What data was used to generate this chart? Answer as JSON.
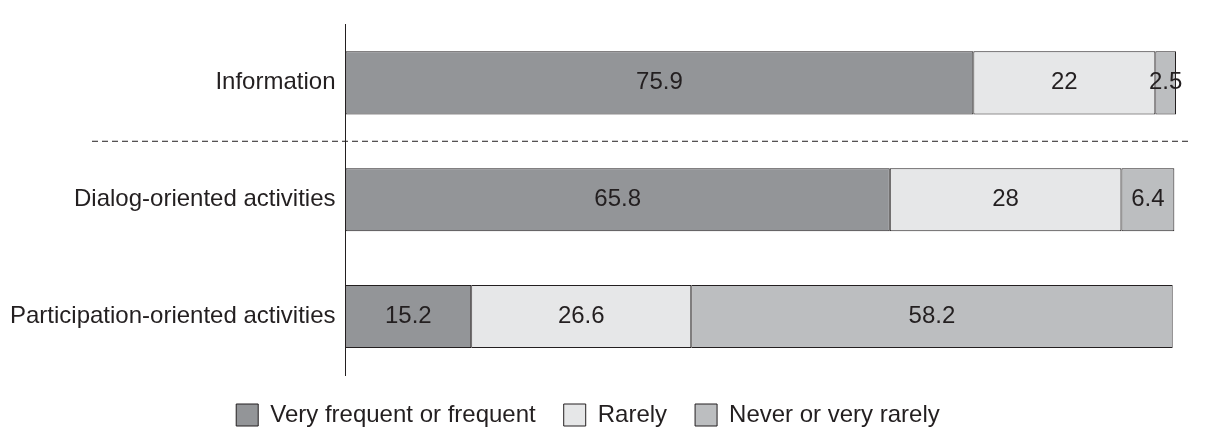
{
  "chart_data": {
    "type": "bar",
    "orientation": "horizontal",
    "stacked": true,
    "categories": [
      "Information",
      "Dialog-oriented activities",
      "Participation-oriented activities"
    ],
    "series": [
      {
        "name": "Very frequent or frequent",
        "color": "#939598",
        "values": [
          75.9,
          65.8,
          15.2
        ]
      },
      {
        "name": "Rarely",
        "color": "#e6e7e8",
        "values": [
          22,
          28,
          26.6
        ]
      },
      {
        "name": "Never or very rarely",
        "color": "#bcbec0",
        "values": [
          2.5,
          6.4,
          58.2
        ]
      }
    ],
    "xlim": [
      0,
      100.4
    ],
    "tick_labels": "y",
    "legend": "bottom",
    "data_labels": true
  }
}
